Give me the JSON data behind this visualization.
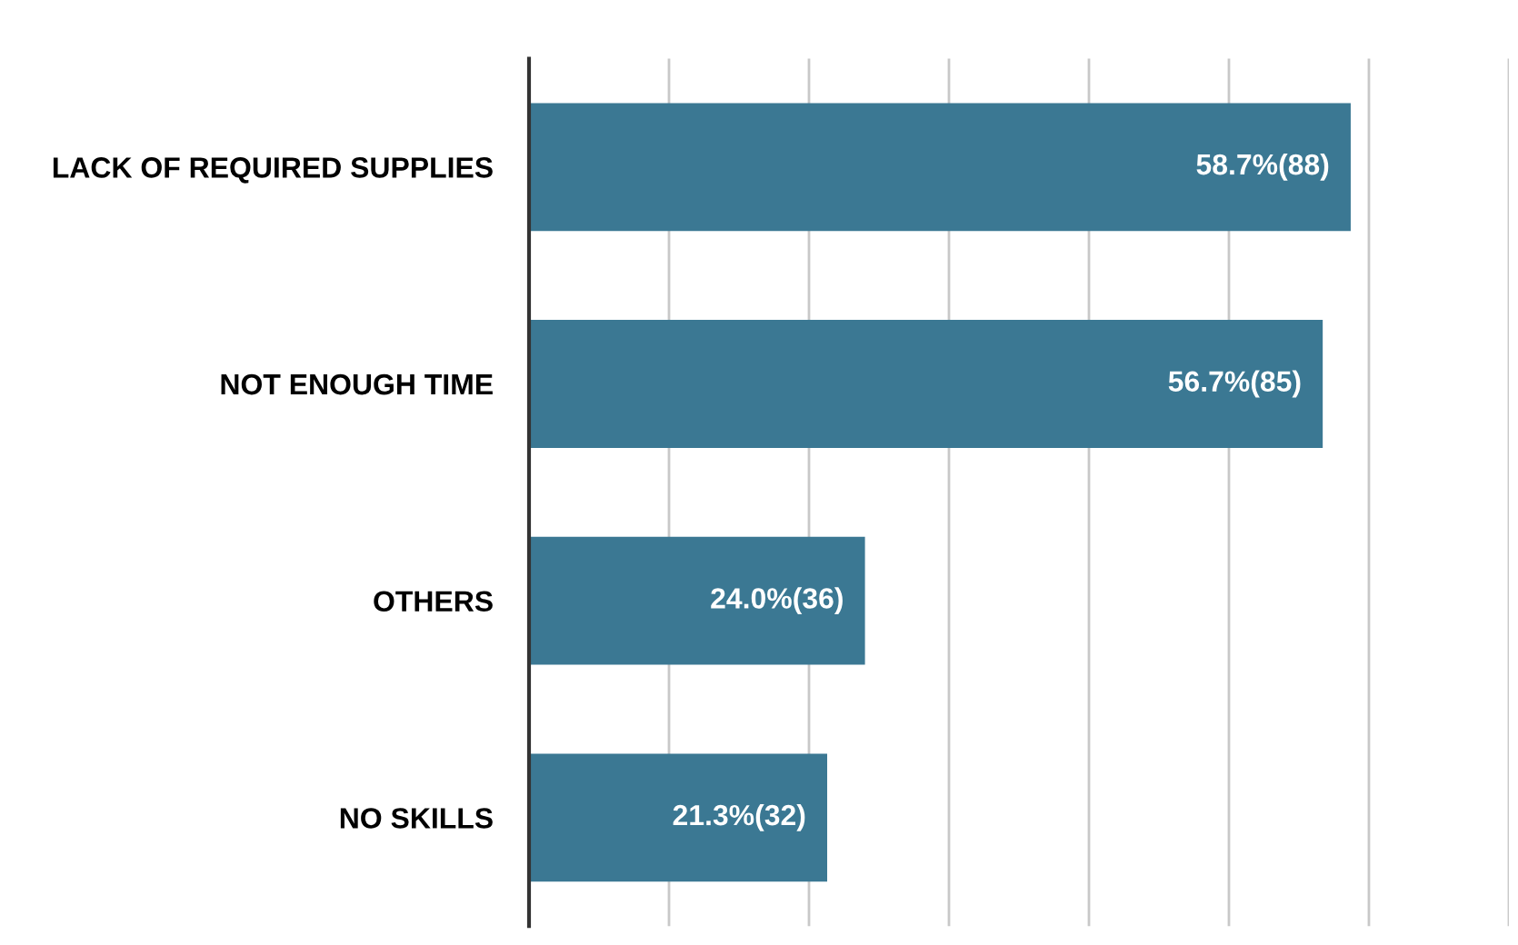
{
  "chart_data": {
    "type": "bar",
    "orientation": "horizontal",
    "categories": [
      "LACK OF REQUIRED SUPPLIES",
      "NOT ENOUGH TIME",
      "OTHERS",
      "NO SKILLS"
    ],
    "values": [
      58.7,
      56.7,
      24.0,
      21.3
    ],
    "value_labels": [
      "58.7%(88)",
      "56.7%(85)",
      "24.0%(36)",
      "21.3%(32)"
    ],
    "color": "#3b7893",
    "xlim": [
      0,
      70
    ],
    "xticks": [
      {
        "value": 0,
        "label": null
      },
      {
        "value": 10,
        "label": null
      },
      {
        "value": 20,
        "label": null
      },
      {
        "value": 30,
        "label": null
      },
      {
        "value": 40,
        "label": null
      },
      {
        "value": 50,
        "label": null
      },
      {
        "value": 60,
        "label": null
      },
      {
        "value": 70,
        "label": null
      }
    ],
    "grid": "x",
    "tick_labels": "y",
    "legend": false
  }
}
